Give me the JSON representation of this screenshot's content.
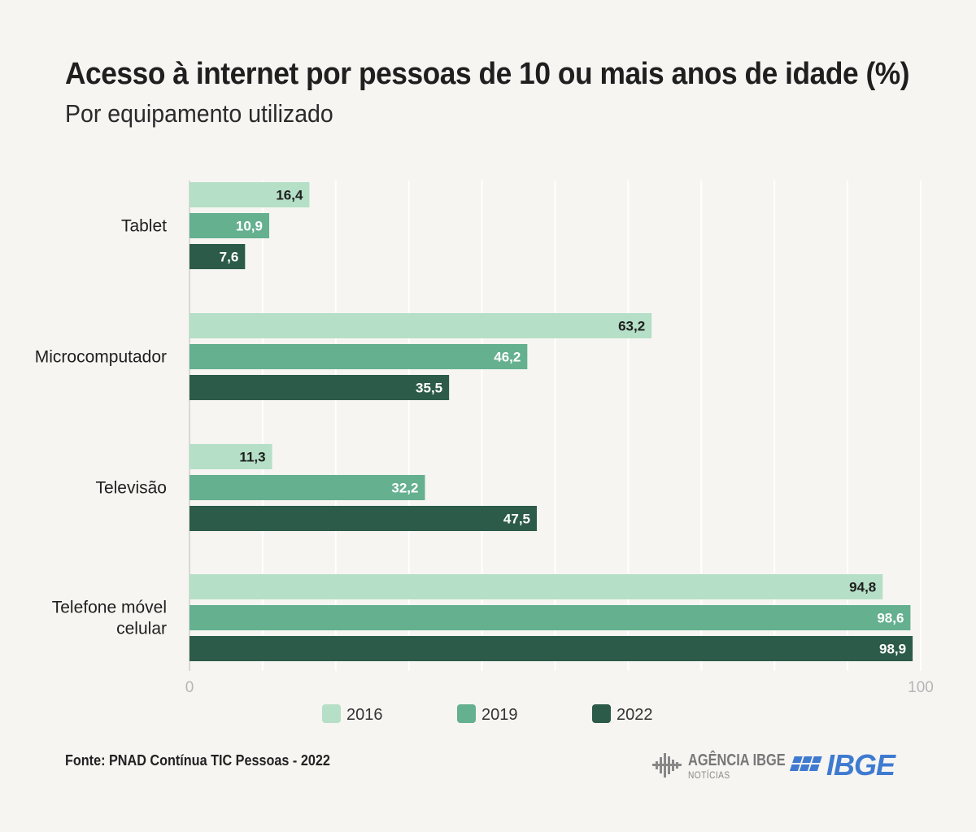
{
  "header": {
    "title": "Acesso à internet por pessoas de 10 ou mais anos de idade (%)",
    "subtitle": "Por equipamento utilizado"
  },
  "footer": {
    "source": "Fonte: PNAD Contínua TIC Pessoas - 2022",
    "logo_agencia": {
      "name": "AGÊNCIA IBGE",
      "sub": "NOTÍCIAS"
    },
    "logo_ibge": "IBGE"
  },
  "colors": {
    "series_2016": "#b5dfc6",
    "series_2019": "#64b08f",
    "series_2022": "#2c5b49",
    "grid": "#ffffff",
    "axis": "#cfcfcf",
    "ibge_blue": "#3f7ad1"
  },
  "chart_data": {
    "type": "bar",
    "orientation": "horizontal",
    "title": "Acesso à internet por pessoas de 10 ou mais anos de idade (%)",
    "subtitle": "Por equipamento utilizado",
    "categories": [
      [
        "Tablet"
      ],
      [
        "Microcomputador"
      ],
      [
        "Televisão"
      ],
      [
        "Telefone móvel",
        "celular"
      ]
    ],
    "series": [
      {
        "name": "2016",
        "values": [
          16.4,
          63.2,
          11.3,
          94.8
        ],
        "labels": [
          "16,4",
          "63,2",
          "11,3",
          "94,8"
        ]
      },
      {
        "name": "2019",
        "values": [
          10.9,
          46.2,
          32.2,
          98.6
        ],
        "labels": [
          "10,9",
          "46,2",
          "32,2",
          "98,6"
        ]
      },
      {
        "name": "2022",
        "values": [
          7.6,
          35.5,
          47.5,
          98.9
        ],
        "labels": [
          "7,6",
          "35,5",
          "47,5",
          "98,9"
        ]
      }
    ],
    "xlim": [
      0,
      100
    ],
    "x_ticks": [
      "0",
      "100"
    ],
    "grid": true,
    "legend": "bottom-center"
  }
}
